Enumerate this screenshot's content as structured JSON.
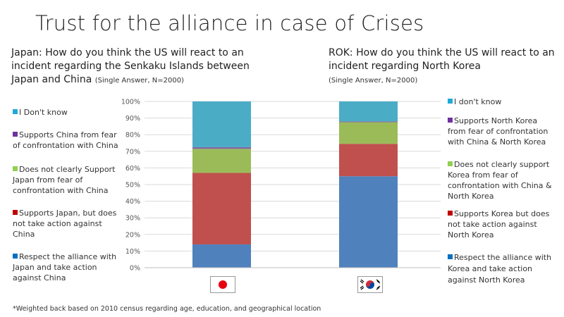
{
  "title": "Trust for the alliance in case of Crises",
  "panels": {
    "japan": {
      "question": "Japan: How do you think the US will react to an incident regarding the Senkaku Islands between Japan and China",
      "note": "(Single Answer, N=2000)"
    },
    "rok": {
      "question": "ROK: How do you think the US will react to an incident regarding North Korea",
      "note": "(Single Answer, N=2000)"
    }
  },
  "legend_japan": [
    {
      "label": "I Don't know",
      "color": "#1FA9D8"
    },
    {
      "label": "Supports China from fear of confrontation with China",
      "color": "#7030A0"
    },
    {
      "label": "Does not clearly Support Japan from fear of confrontation with China",
      "color": "#92D050"
    },
    {
      "label": "Supports Japan, but does not take action against China",
      "color": "#C00000"
    },
    {
      "label": "Respect the alliance with Japan and take action against China",
      "color": "#0070C0"
    }
  ],
  "legend_rok": [
    {
      "label": "I don't know",
      "color": "#1FA9D8"
    },
    {
      "label": "Supports North Korea from fear of confrontation with China & North Korea",
      "color": "#7030A0"
    },
    {
      "label": "Does not clearly support Korea from fear of confrontation with China & North Korea",
      "color": "#92D050"
    },
    {
      "label": "Supports Korea but does not take action against North Korea",
      "color": "#C00000"
    },
    {
      "label": "Respect the alliance with Korea and take action against North Korea",
      "color": "#0070C0"
    }
  ],
  "chart_data": {
    "type": "bar",
    "stacked": true,
    "categories": [
      "Japan",
      "ROK"
    ],
    "yticks": [
      "0%",
      "10%",
      "20%",
      "30%",
      "40%",
      "50%",
      "60%",
      "70%",
      "80%",
      "90%",
      "100%"
    ],
    "ylim": [
      0,
      100
    ],
    "series": [
      {
        "color": "#4F81BD",
        "values": [
          14,
          55
        ]
      },
      {
        "color": "#C0504D",
        "values": [
          43,
          19.5
        ]
      },
      {
        "color": "#9BBB59",
        "values": [
          14.5,
          13
        ]
      },
      {
        "color": "#8064A2",
        "values": [
          1,
          0.5
        ]
      },
      {
        "color": "#4BACC6",
        "values": [
          27.5,
          12
        ]
      }
    ]
  },
  "footnote": "*Weighted back based on 2010 census regarding age, education, and geographical location"
}
